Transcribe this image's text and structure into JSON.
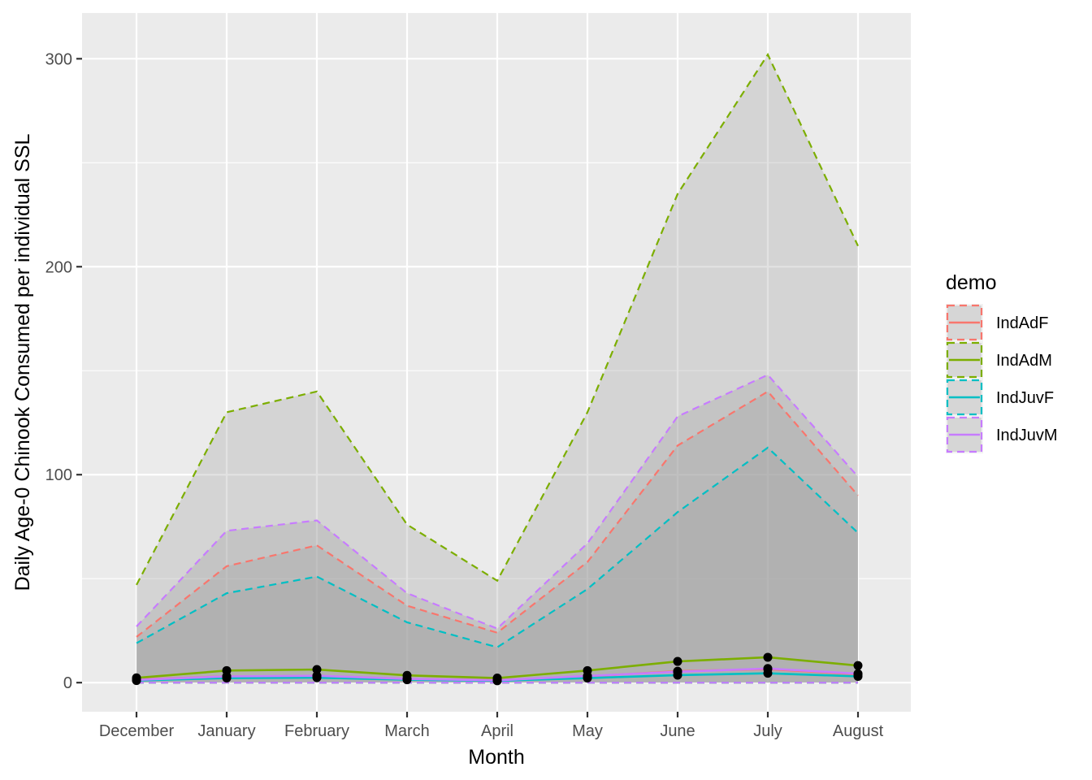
{
  "chart_data": {
    "type": "line",
    "categories": [
      "December",
      "January",
      "February",
      "March",
      "April",
      "May",
      "June",
      "July",
      "August"
    ],
    "xlabel": "Month",
    "ylabel": "Daily Age-0 Chinook Consumed per individual SSL",
    "ylim": [
      -14,
      322
    ],
    "y_ticks": [
      0,
      100,
      200,
      300
    ],
    "grid": true,
    "legend": {
      "title": "demo",
      "placement": "right",
      "entries": [
        "IndAdF",
        "IndAdM",
        "IndJuvF",
        "IndJuvM"
      ]
    },
    "series": [
      {
        "name": "IndAdF",
        "color": "#F8766D",
        "median": [
          1.5,
          3,
          3.2,
          1.8,
          1.2,
          3,
          5.5,
          6.5,
          4
        ],
        "upper": [
          22,
          56,
          66,
          37,
          24,
          58,
          114,
          140,
          90
        ],
        "lower": [
          0,
          0,
          0,
          0,
          0,
          0,
          0,
          0,
          0
        ]
      },
      {
        "name": "IndAdM",
        "color": "#7CAE00",
        "median": [
          2.3,
          5.8,
          6.3,
          3.5,
          2.2,
          5.8,
          10.2,
          12.2,
          8.2
        ],
        "upper": [
          47,
          130,
          140,
          76,
          49,
          130,
          235,
          302,
          210
        ],
        "lower": [
          0,
          0,
          0,
          0,
          0,
          0,
          0,
          0,
          0
        ]
      },
      {
        "name": "IndJuvF",
        "color": "#00BFC4",
        "median": [
          1,
          2.2,
          2.4,
          1.4,
          0.9,
          2.2,
          3.6,
          4.5,
          3
        ],
        "upper": [
          19,
          43,
          51,
          29,
          17,
          45,
          82,
          113,
          72
        ],
        "lower": [
          0,
          0,
          0,
          0,
          0,
          0,
          0,
          0,
          0
        ]
      },
      {
        "name": "IndJuvM",
        "color": "#C77CFF",
        "median": [
          1.3,
          3,
          3.3,
          1.8,
          1.1,
          3.2,
          5.2,
          6.8,
          4.3
        ],
        "upper": [
          27,
          73,
          78,
          43,
          26,
          67,
          128,
          148,
          99
        ],
        "lower": [
          0,
          0,
          0,
          0,
          0,
          0,
          0,
          0,
          0
        ]
      }
    ]
  }
}
